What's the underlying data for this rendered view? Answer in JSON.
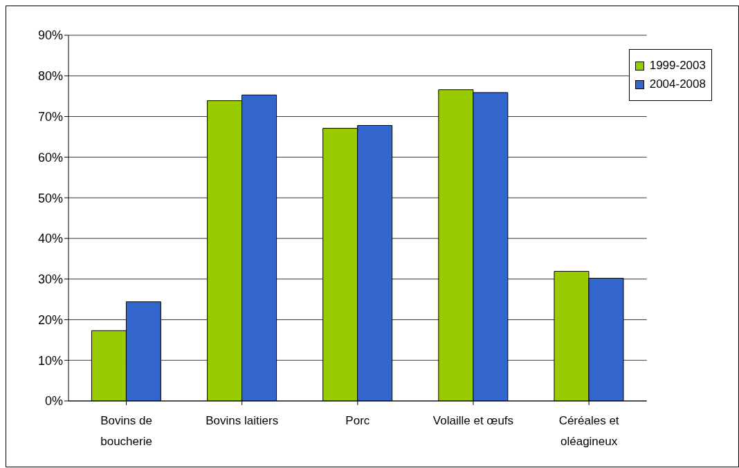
{
  "chart_data": {
    "type": "bar",
    "categories": [
      "Bovins de boucherie",
      "Bovins laitiers",
      "Porc",
      "Volaille et œufs",
      "Céréales et oléagineux"
    ],
    "series": [
      {
        "name": "1999-2003",
        "color": "#99cc00",
        "values": [
          17.3,
          73.9,
          67.1,
          76.6,
          31.9
        ]
      },
      {
        "name": "2004-2008",
        "color": "#3366cc",
        "values": [
          24.4,
          75.3,
          67.8,
          75.9,
          30.2
        ]
      }
    ],
    "ylim": [
      0,
      90
    ],
    "yticks": [
      {
        "value": 0,
        "label": "0%"
      },
      {
        "value": 10,
        "label": "10%"
      },
      {
        "value": 20,
        "label": "20%"
      },
      {
        "value": 30,
        "label": "30%"
      },
      {
        "value": 40,
        "label": "40%"
      },
      {
        "value": 50,
        "label": "50%"
      },
      {
        "value": 60,
        "label": "60%"
      },
      {
        "value": 70,
        "label": "70%"
      },
      {
        "value": 80,
        "label": "80%"
      },
      {
        "value": 90,
        "label": "90%"
      }
    ],
    "grid": "y",
    "legend": "top right"
  }
}
